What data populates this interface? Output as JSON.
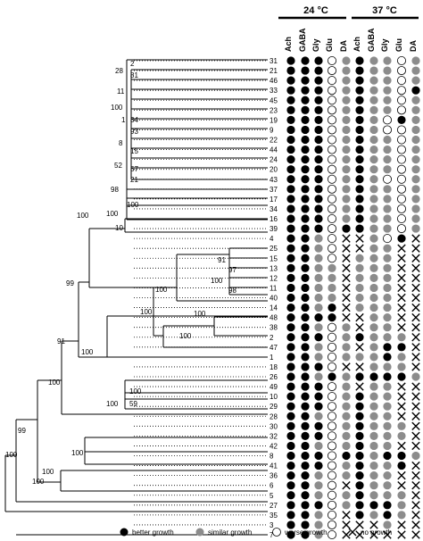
{
  "conditions": [
    {
      "label": "24 °C",
      "columns": [
        "Ach",
        "GABA",
        "Gly",
        "Glu",
        "DA"
      ]
    },
    {
      "label": "37 °C",
      "columns": [
        "Ach",
        "GABA",
        "Gly",
        "Glu",
        "DA"
      ]
    }
  ],
  "legend": [
    {
      "symbol": "better",
      "label": "better growth"
    },
    {
      "symbol": "similar",
      "label": "similar growth"
    },
    {
      "symbol": "worse",
      "label": "worse growth"
    },
    {
      "symbol": "none",
      "label": "no growth"
    }
  ],
  "colors": {
    "better": "#000000",
    "similar": "#8c8c8c",
    "worse": "#ffffff",
    "none": "#000000"
  },
  "symbol_codes": {
    "B": "better",
    "S": "similar",
    "W": "worse",
    "X": "none"
  },
  "strains": [
    "31",
    "21",
    "46",
    "33",
    "45",
    "23",
    "19",
    "9",
    "22",
    "44",
    "24",
    "20",
    "43",
    "37",
    "17",
    "34",
    "16",
    "39",
    "4",
    "25",
    "15",
    "13",
    "12",
    "11",
    "40",
    "14",
    "48",
    "38",
    "2",
    "47",
    "1",
    "18",
    "26",
    "49",
    "10",
    "29",
    "28",
    "30",
    "32",
    "42",
    "8",
    "41",
    "36",
    "6",
    "5",
    "27",
    "35",
    "3",
    "7"
  ],
  "growth": {
    "24C": [
      "BBBWS",
      "BBBWS",
      "BBBWS",
      "BBBWS",
      "BBBWS",
      "BBBWS",
      "BBBWS",
      "BBBWS",
      "BBBWS",
      "BBBWS",
      "BBBWS",
      "BBBWS",
      "BBBWS",
      "BBBWS",
      "BBBWS",
      "BBBWS",
      "BBBWS",
      "BBBWB",
      "BBSWX",
      "BBSWX",
      "BBSWX",
      "BBSSX",
      "BBSSX",
      "BBSSX",
      "BBSSX",
      "BBSBX",
      "BBBBX",
      "BBSWS",
      "BBBWS",
      "BBSWS",
      "BBSWS",
      "BBBWX",
      "BBSBS",
      "BBBWS",
      "BBBWS",
      "BBBWS",
      "BBSWS",
      "BBBWS",
      "BBBWS",
      "BBSWS",
      "BBBWB",
      "BBBWS",
      "BBSWS",
      "BBSWX",
      "BBSWS",
      "BBBWS",
      "BBSWX",
      "BBSWX",
      "BBSWX"
    ],
    "37C": [
      "BSSWS",
      "BSSWS",
      "BSSWS",
      "BSSWB",
      "BSSWS",
      "BSSWS",
      "BSWBS",
      "BSWWS",
      "BSSWS",
      "BSSWS",
      "BSSWS",
      "BSSWS",
      "BSWWS",
      "BSSWS",
      "BSSWS",
      "BSSWS",
      "BSSWS",
      "BSSWS",
      "XSWBX",
      "XSSXX",
      "SSSXX",
      "SSSXX",
      "SSSXX",
      "SSSXX",
      "SSSXX",
      "SSSXX",
      "XSSXX",
      "XSSXX",
      "BSSSX",
      "XSBBX",
      "SSBSX",
      "XSSSX",
      "BBBBS",
      "XSSXX",
      "BSSXX",
      "BSSXX",
      "BSSXX",
      "BSSSX",
      "BSSSX",
      "BSSXX",
      "BSBBS",
      "BSSBX",
      "BSSXX",
      "BSSXX",
      "BSSSX",
      "BBBSX",
      "BSBSX",
      "XXSXX",
      "XXXXX"
    ]
  },
  "tree": {
    "labels": [
      {
        "text": "28"
      },
      {
        "text": "2"
      },
      {
        "text": "81"
      },
      {
        "text": "11"
      },
      {
        "text": "100"
      },
      {
        "text": "1"
      },
      {
        "text": "34"
      },
      {
        "text": "93"
      },
      {
        "text": "8"
      },
      {
        "text": "15"
      },
      {
        "text": "52"
      },
      {
        "text": "57"
      },
      {
        "text": "21"
      },
      {
        "text": "98"
      },
      {
        "text": "100"
      },
      {
        "text": "100"
      },
      {
        "text": "10"
      },
      {
        "text": "100"
      },
      {
        "text": "91"
      },
      {
        "text": "97"
      },
      {
        "text": "100"
      },
      {
        "text": "98"
      },
      {
        "text": "99"
      },
      {
        "text": "100"
      },
      {
        "text": "100"
      },
      {
        "text": "100"
      },
      {
        "text": "100"
      },
      {
        "text": "91"
      },
      {
        "text": "100"
      },
      {
        "text": "100"
      },
      {
        "text": "100"
      },
      {
        "text": "59"
      },
      {
        "text": "100"
      },
      {
        "text": "99"
      },
      {
        "text": "100"
      },
      {
        "text": "100"
      },
      {
        "text": "100"
      },
      {
        "text": "100"
      }
    ]
  }
}
